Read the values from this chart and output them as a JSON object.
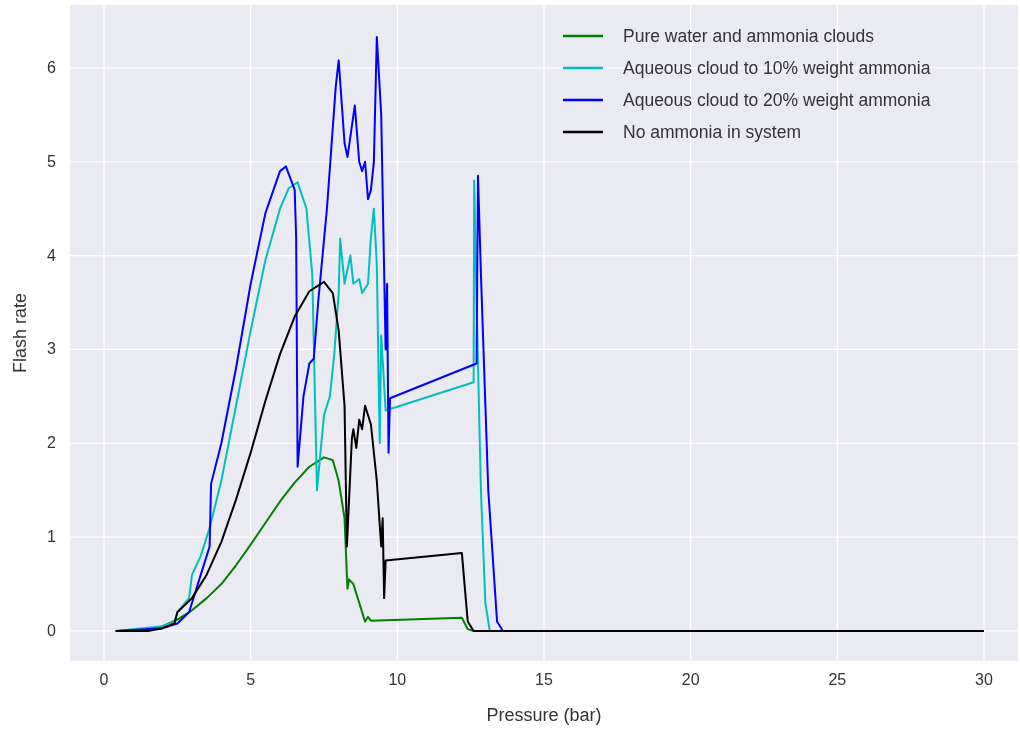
{
  "chart_data": {
    "type": "line",
    "xlabel": "Pressure (bar)",
    "ylabel": "Flash rate",
    "xlim": [
      -1.16,
      31.16
    ],
    "ylim": [
      -0.32,
      6.67
    ],
    "xticks": [
      0,
      5,
      10,
      15,
      20,
      25,
      30
    ],
    "yticks": [
      0,
      1,
      2,
      3,
      4,
      5,
      6
    ],
    "grid": true,
    "legend": "top right",
    "marker": "none",
    "line_style": "solid",
    "series": [
      {
        "name": "Pure water and ammonia clouds",
        "color": "#008000",
        "x": [
          0.4,
          1.5,
          2,
          2.5,
          3,
          3.5,
          4,
          4.5,
          5,
          5.5,
          6,
          6.5,
          7,
          7.5,
          7.8,
          8.0,
          8.2,
          8.3,
          8.35,
          8.5,
          8.9,
          9.0,
          9.1,
          12.2,
          12.4,
          12.6
        ],
        "values": [
          0,
          0.01,
          0.05,
          0.12,
          0.22,
          0.35,
          0.5,
          0.7,
          0.92,
          1.15,
          1.38,
          1.58,
          1.75,
          1.85,
          1.82,
          1.6,
          1.2,
          0.45,
          0.55,
          0.5,
          0.1,
          0.15,
          0.11,
          0.14,
          0.02,
          0
        ]
      },
      {
        "name": "Aqueous cloud to 10% weight ammonia",
        "color": "#00bfbf",
        "x": [
          0.4,
          2,
          2.4,
          2.5,
          2.9,
          3.0,
          3.3,
          3.6,
          4,
          4.5,
          5,
          5.5,
          6,
          6.3,
          6.6,
          6.9,
          7.1,
          7.26,
          7.5,
          7.7,
          7.85,
          8.0,
          8.05,
          8.2,
          8.4,
          8.5,
          8.7,
          8.8,
          9.0,
          9.1,
          9.2,
          9.3,
          9.4,
          9.45,
          9.6,
          12.6,
          12.62,
          12.7,
          12.85,
          13.0,
          13.15,
          30
        ],
        "values": [
          0,
          0.05,
          0.1,
          0.2,
          0.35,
          0.6,
          0.8,
          1.1,
          1.6,
          2.4,
          3.2,
          3.95,
          4.5,
          4.72,
          4.78,
          4.5,
          3.8,
          1.5,
          2.3,
          2.5,
          2.95,
          3.6,
          4.18,
          3.7,
          4.0,
          3.7,
          3.75,
          3.6,
          3.7,
          4.2,
          4.5,
          3.9,
          2.0,
          3.15,
          2.35,
          2.65,
          4.8,
          3.5,
          1.5,
          0.3,
          0,
          0
        ]
      },
      {
        "name": "Aqueous cloud to 20% weight ammonia",
        "color": "#0000ff",
        "x": [
          0.4,
          2,
          2.5,
          2.9,
          3.0,
          3.3,
          3.6,
          3.65,
          4,
          4.5,
          5,
          5.5,
          6,
          6.2,
          6.5,
          6.55,
          6.6,
          6.8,
          7.0,
          7.15,
          7.3,
          7.6,
          7.9,
          8.0,
          8.2,
          8.3,
          8.55,
          8.7,
          8.8,
          8.9,
          9.0,
          9.1,
          9.2,
          9.3,
          9.45,
          9.6,
          9.65,
          9.7,
          9.75,
          12.7,
          12.75,
          12.85,
          13.1,
          13.4,
          13.6,
          30
        ],
        "values": [
          0,
          0.03,
          0.08,
          0.2,
          0.3,
          0.6,
          0.9,
          1.57,
          2.0,
          2.8,
          3.7,
          4.45,
          4.9,
          4.95,
          4.7,
          4.2,
          1.75,
          2.5,
          2.85,
          2.9,
          3.5,
          4.5,
          5.8,
          6.08,
          5.2,
          5.05,
          5.6,
          5.0,
          4.9,
          5.0,
          4.6,
          4.7,
          5.0,
          6.33,
          5.5,
          3.0,
          3.7,
          1.9,
          2.48,
          2.85,
          4.85,
          3.8,
          1.5,
          0.1,
          0,
          0
        ]
      },
      {
        "name": "No ammonia in system",
        "color": "#000000",
        "x": [
          0.4,
          1.5,
          2,
          2.4,
          2.5,
          3,
          3.5,
          4,
          4.5,
          5,
          5.5,
          6,
          6.5,
          7,
          7.5,
          7.8,
          8.0,
          8.2,
          8.28,
          8.45,
          8.5,
          8.6,
          8.7,
          8.8,
          8.9,
          9.1,
          9.3,
          9.45,
          9.5,
          9.55,
          9.6,
          12.2,
          12.4,
          12.6,
          30
        ],
        "values": [
          0,
          0,
          0.03,
          0.08,
          0.2,
          0.35,
          0.6,
          0.95,
          1.4,
          1.9,
          2.45,
          2.95,
          3.35,
          3.62,
          3.72,
          3.6,
          3.2,
          2.4,
          0.9,
          2.05,
          2.15,
          1.95,
          2.25,
          2.15,
          2.4,
          2.2,
          1.6,
          0.9,
          1.2,
          0.35,
          0.75,
          0.83,
          0.1,
          0,
          0
        ]
      }
    ]
  }
}
